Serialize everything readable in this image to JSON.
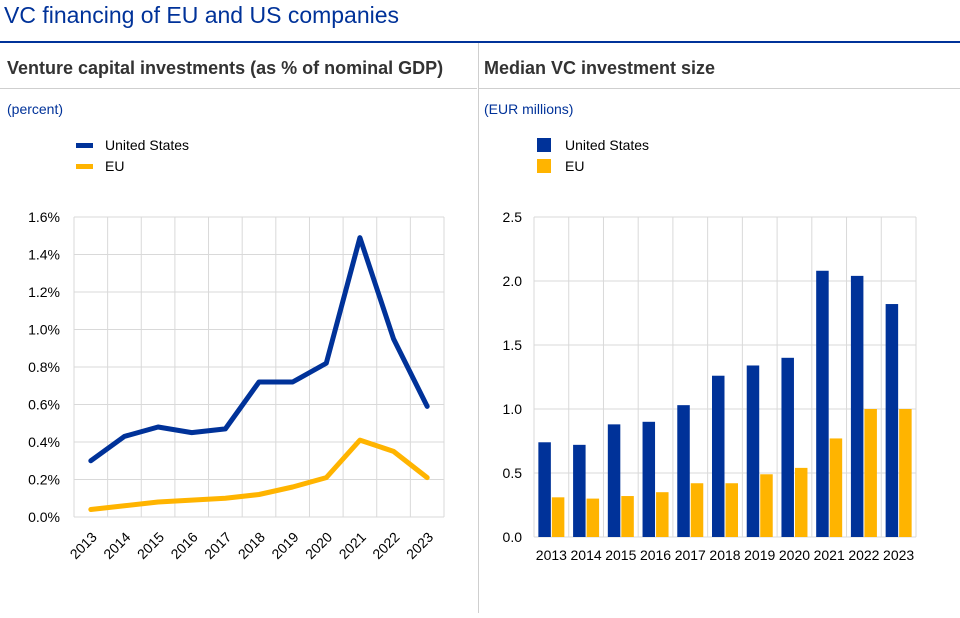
{
  "title": "VC financing of EU and US companies",
  "colors": {
    "us": "#003299",
    "eu": "#FFB400",
    "grid": "#d9d9d9",
    "accent": "#003299"
  },
  "left_panel": {
    "title": "Venture capital investments (as % of nominal GDP)",
    "unit": "(percent)",
    "legend": [
      "United States",
      "EU"
    ]
  },
  "right_panel": {
    "title": "Median VC investment size",
    "unit": "(EUR millions)",
    "legend": [
      "United States",
      "EU"
    ]
  },
  "chart_data": [
    {
      "type": "line",
      "title": "Venture capital investments (as % of nominal GDP)",
      "ylabel": "(percent)",
      "categories": [
        "2013",
        "2014",
        "2015",
        "2016",
        "2017",
        "2018",
        "2019",
        "2020",
        "2021",
        "2022",
        "2023"
      ],
      "y_ticks": [
        "0.0%",
        "0.2%",
        "0.4%",
        "0.6%",
        "0.8%",
        "1.0%",
        "1.2%",
        "1.4%",
        "1.6%"
      ],
      "ylim": [
        0,
        1.6
      ],
      "series": [
        {
          "name": "United States",
          "values": [
            0.3,
            0.43,
            0.48,
            0.45,
            0.47,
            0.72,
            0.72,
            0.82,
            1.49,
            0.95,
            0.59
          ]
        },
        {
          "name": "EU",
          "values": [
            0.04,
            0.06,
            0.08,
            0.09,
            0.1,
            0.12,
            0.16,
            0.21,
            0.41,
            0.35,
            0.21
          ]
        }
      ]
    },
    {
      "type": "bar",
      "title": "Median VC investment size",
      "ylabel": "(EUR millions)",
      "categories": [
        "2013",
        "2014",
        "2015",
        "2016",
        "2017",
        "2018",
        "2019",
        "2020",
        "2021",
        "2022",
        "2023"
      ],
      "y_ticks": [
        "0.0",
        "0.5",
        "1.0",
        "1.5",
        "2.0",
        "2.5"
      ],
      "ylim": [
        0,
        2.5
      ],
      "series": [
        {
          "name": "United States",
          "values": [
            0.74,
            0.72,
            0.88,
            0.9,
            1.03,
            1.26,
            1.34,
            1.4,
            2.08,
            2.04,
            1.82
          ]
        },
        {
          "name": "EU",
          "values": [
            0.31,
            0.3,
            0.32,
            0.35,
            0.42,
            0.42,
            0.49,
            0.54,
            0.77,
            1.0,
            1.0
          ]
        }
      ]
    }
  ]
}
